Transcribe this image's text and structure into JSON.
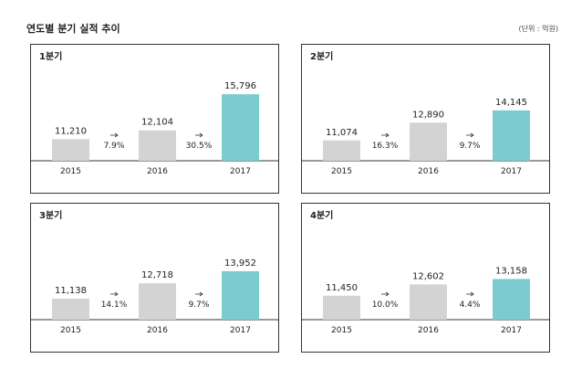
{
  "title": "연도별 분기 실적 추이",
  "unit": "(단위 : 억원)",
  "colors": {
    "past": "#d3d3d3",
    "current": "#7accce"
  },
  "chart_data": [
    {
      "type": "bar",
      "label": "1분기",
      "categories": [
        "2015",
        "2016",
        "2017"
      ],
      "values": [
        11210,
        12104,
        15796
      ],
      "value_labels": [
        "11,210",
        "12,104",
        "15,796"
      ],
      "growth": [
        "7.9%",
        "30.5%"
      ]
    },
    {
      "type": "bar",
      "label": "2분기",
      "categories": [
        "2015",
        "2016",
        "2017"
      ],
      "values": [
        11074,
        12890,
        14145
      ],
      "value_labels": [
        "11,074",
        "12,890",
        "14,145"
      ],
      "growth": [
        "16.3%",
        "9.7%"
      ]
    },
    {
      "type": "bar",
      "label": "3분기",
      "categories": [
        "2015",
        "2016",
        "2017"
      ],
      "values": [
        11138,
        12718,
        13952
      ],
      "value_labels": [
        "11,138",
        "12,718",
        "13,952"
      ],
      "growth": [
        "14.1%",
        "9.7%"
      ]
    },
    {
      "type": "bar",
      "label": "4분기",
      "categories": [
        "2015",
        "2016",
        "2017"
      ],
      "values": [
        11450,
        12602,
        13158
      ],
      "value_labels": [
        "11,450",
        "12,602",
        "13,158"
      ],
      "growth": [
        "10.0%",
        "4.4%"
      ]
    }
  ]
}
